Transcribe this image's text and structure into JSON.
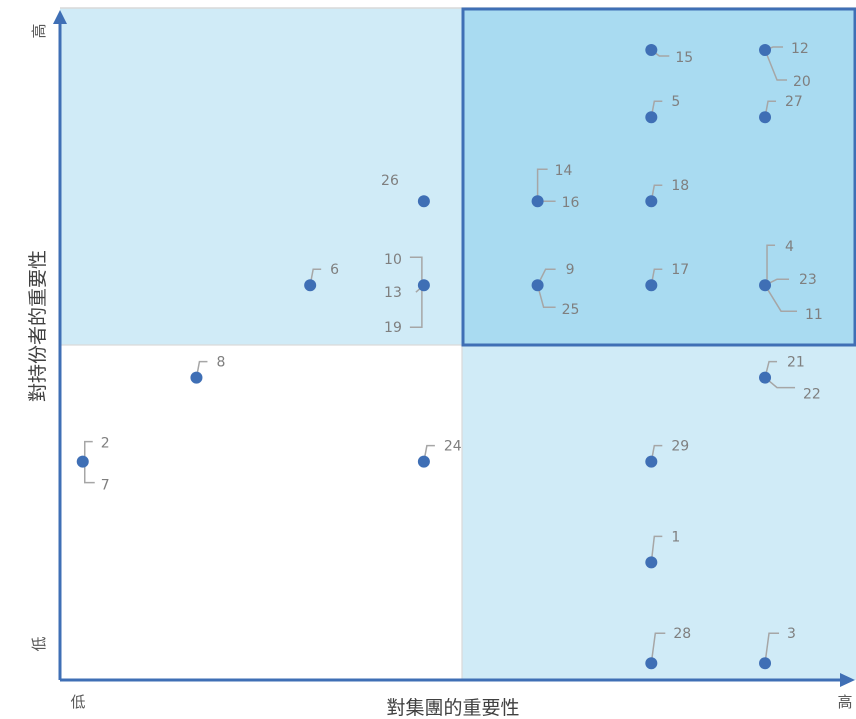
{
  "chart_data": {
    "type": "scatter",
    "title": "",
    "xlabel": "對集團的重要性",
    "ylabel": "對持份者的重要性",
    "x_low": "低",
    "x_high": "高",
    "y_low": "低",
    "y_high": "高",
    "xlim": [
      0,
      7
    ],
    "ylim": [
      0,
      8
    ],
    "grid": false,
    "colors": {
      "marker": "#3f6fb5",
      "quadrant_light": "#d0ebf7",
      "quadrant_top_right": "#a9dbf1",
      "highlight_border": "#3f6fb5",
      "axis": "#3f6fb5",
      "leader": "#a6a6a6",
      "label": "#7f7f7f"
    },
    "points": [
      {
        "x": 5.2,
        "y": 6.7,
        "labels": [
          "5"
        ]
      },
      {
        "x": 5.2,
        "y": 7.5,
        "labels": [
          "15"
        ]
      },
      {
        "x": 6.2,
        "y": 7.5,
        "labels": [
          "12",
          "20"
        ]
      },
      {
        "x": 6.2,
        "y": 6.7,
        "labels": [
          "27"
        ]
      },
      {
        "x": 4.2,
        "y": 5.7,
        "labels": [
          "14",
          "16"
        ]
      },
      {
        "x": 5.2,
        "y": 5.7,
        "labels": [
          "18"
        ]
      },
      {
        "x": 4.2,
        "y": 4.7,
        "labels": [
          "9",
          "25"
        ]
      },
      {
        "x": 5.2,
        "y": 4.7,
        "labels": [
          "17"
        ]
      },
      {
        "x": 6.2,
        "y": 4.7,
        "labels": [
          "4",
          "23",
          "11"
        ]
      },
      {
        "x": 3.2,
        "y": 5.7,
        "labels": [
          "26"
        ]
      },
      {
        "x": 3.2,
        "y": 4.7,
        "labels": [
          "10",
          "13",
          "19"
        ]
      },
      {
        "x": 2.2,
        "y": 4.7,
        "labels": [
          "6"
        ]
      },
      {
        "x": 1.2,
        "y": 3.6,
        "labels": [
          "8"
        ]
      },
      {
        "x": 0.2,
        "y": 2.6,
        "labels": [
          "2",
          "7"
        ]
      },
      {
        "x": 3.2,
        "y": 2.6,
        "labels": [
          "24"
        ]
      },
      {
        "x": 6.2,
        "y": 3.6,
        "labels": [
          "21",
          "22"
        ]
      },
      {
        "x": 5.2,
        "y": 2.6,
        "labels": [
          "29"
        ]
      },
      {
        "x": 5.2,
        "y": 1.4,
        "labels": [
          "1"
        ]
      },
      {
        "x": 5.2,
        "y": 0.2,
        "labels": [
          "28"
        ]
      },
      {
        "x": 6.2,
        "y": 0.2,
        "labels": [
          "3"
        ]
      }
    ]
  }
}
